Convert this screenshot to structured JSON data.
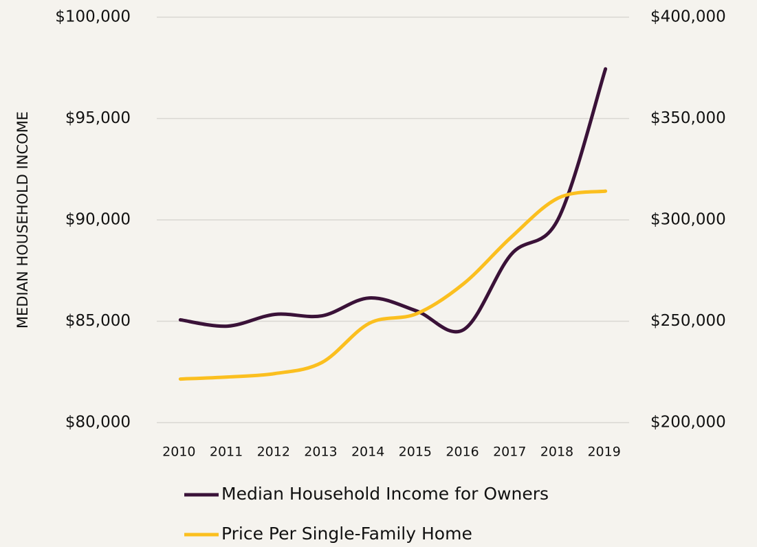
{
  "chart_data": {
    "type": "line",
    "y_axis_label": "MEDIAN HOUSEHOLD INCOME",
    "categories": [
      "2010",
      "2011",
      "2012",
      "2013",
      "2014",
      "2015",
      "2016",
      "2017",
      "2018",
      "2019"
    ],
    "series": [
      {
        "name": "Median Household Income for Owners",
        "color": "#3a1238",
        "axis": "y",
        "values": [
          85070,
          84760,
          85340,
          85270,
          86150,
          85510,
          84590,
          88290,
          90050,
          97450
        ]
      },
      {
        "name": "Price Per Single-Family Home",
        "color": "#fbbf1f",
        "axis": "y2",
        "values": [
          221500,
          222500,
          224200,
          229700,
          249000,
          253700,
          268600,
          291400,
          310800,
          314200
        ]
      }
    ],
    "ylim": [
      80000,
      100000
    ],
    "yticks": [
      {
        "value": 80000,
        "label": "$80,000"
      },
      {
        "value": 85000,
        "label": "$85,000"
      },
      {
        "value": 90000,
        "label": "$90,000"
      },
      {
        "value": 95000,
        "label": "$95,000"
      },
      {
        "value": 100000,
        "label": "$100,000"
      }
    ],
    "y2lim": [
      200000,
      400000
    ],
    "y2ticks": [
      {
        "value": 200000,
        "label": "$200,000"
      },
      {
        "value": 250000,
        "label": "$250,000"
      },
      {
        "value": 300000,
        "label": "$300,000"
      },
      {
        "value": 350000,
        "label": "$350,000"
      },
      {
        "value": 400000,
        "label": "$400,000"
      }
    ],
    "grid": true,
    "legend": "bottom"
  }
}
